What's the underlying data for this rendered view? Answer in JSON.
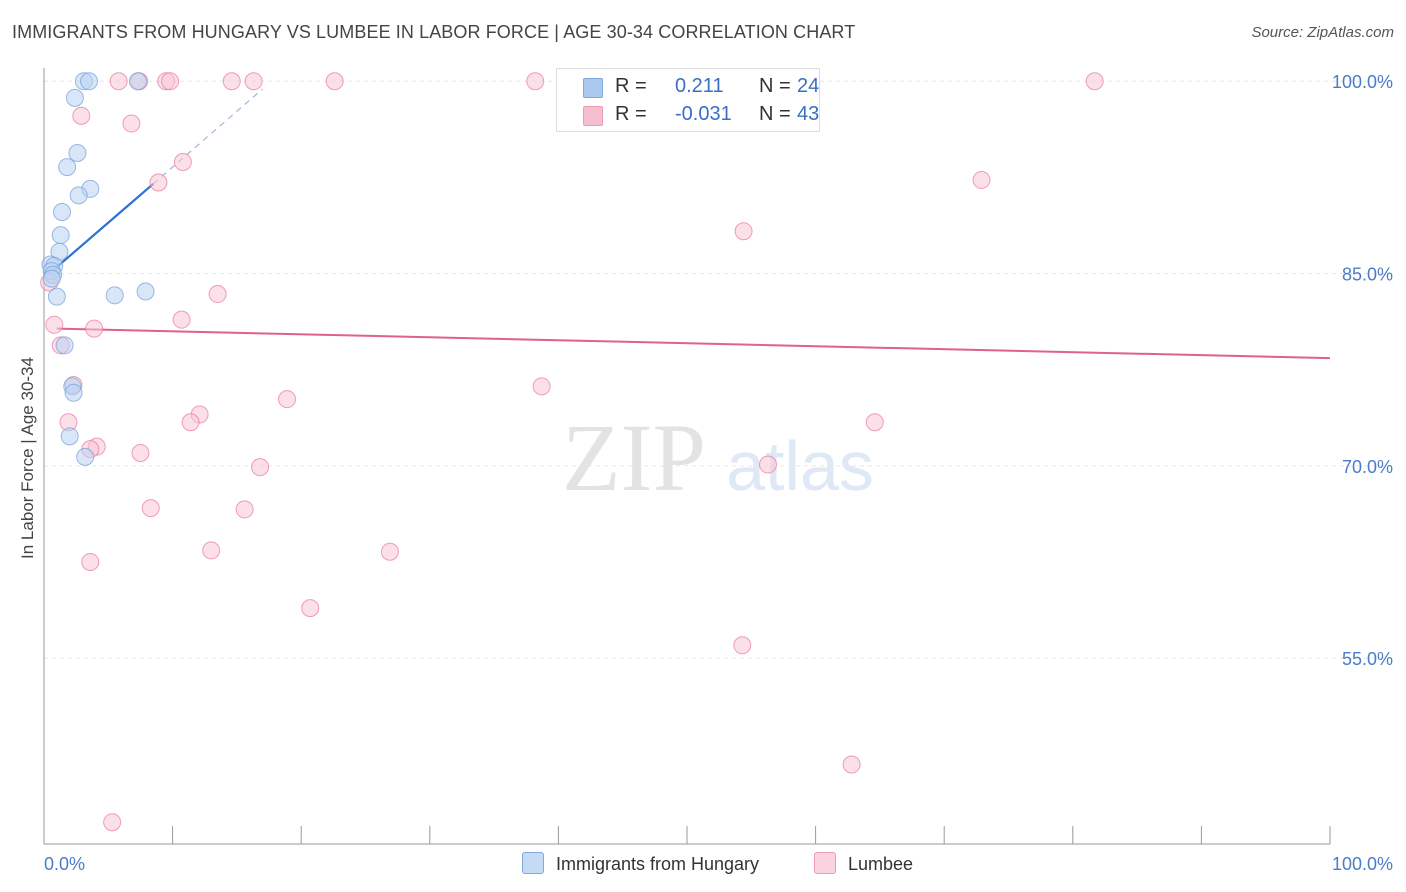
{
  "title": "IMMIGRANTS FROM HUNGARY VS LUMBEE IN LABOR FORCE | AGE 30-34 CORRELATION CHART",
  "source": "Source: ZipAtlas.com",
  "watermark": {
    "zip": "ZIP",
    "atlas": "atlas"
  },
  "stats": [
    {
      "r_label": "R =",
      "r_value": "0.211",
      "n_label": "N =",
      "n_value": "24",
      "color": "#a9c7ef",
      "border": "#7ea8e0"
    },
    {
      "r_label": "R =",
      "r_value": "-0.031",
      "n_label": "N =",
      "n_value": "43",
      "color": "#f6bfd0",
      "border": "#ee9ab4"
    }
  ],
  "legend": [
    {
      "label": "Immigrants from Hungary",
      "color": "#c5daf5",
      "border": "#7ea8e0"
    },
    {
      "label": "Lumbee",
      "color": "#fbd3e0",
      "border": "#ee9ab4"
    }
  ],
  "chart_data": {
    "type": "scatter",
    "title": "IMMIGRANTS FROM HUNGARY VS LUMBEE IN LABOR FORCE | AGE 30-34 CORRELATION CHART",
    "xlabel": "",
    "ylabel": "In Labor Force | Age 30-34",
    "xlim": [
      0,
      100
    ],
    "ylim": [
      40.5,
      101.5
    ],
    "x_tick_labels": [
      "0.0%",
      "100.0%"
    ],
    "y_ticks": [
      55,
      70,
      85,
      100
    ],
    "y_tick_labels": [
      "55.0%",
      "70.0%",
      "85.0%",
      "100.0%"
    ],
    "grid": true,
    "series": [
      {
        "name": "Immigrants from Hungary",
        "color": "#6f9fdc",
        "fill": "#b9d2f3",
        "points": [
          [
            3.1,
            100.0
          ],
          [
            3.5,
            100.0
          ],
          [
            7.3,
            100.0
          ],
          [
            2.4,
            98.7
          ],
          [
            2.6,
            94.4
          ],
          [
            1.8,
            93.3
          ],
          [
            3.6,
            91.6
          ],
          [
            2.7,
            91.1
          ],
          [
            1.4,
            89.8
          ],
          [
            1.3,
            88.0
          ],
          [
            1.2,
            86.7
          ],
          [
            0.5,
            85.7
          ],
          [
            0.8,
            85.6
          ],
          [
            0.6,
            85.2
          ],
          [
            0.7,
            84.9
          ],
          [
            0.6,
            84.6
          ],
          [
            1.0,
            83.2
          ],
          [
            5.5,
            83.3
          ],
          [
            7.9,
            83.6
          ],
          [
            1.6,
            79.4
          ],
          [
            2.2,
            76.2
          ],
          [
            2.3,
            75.7
          ],
          [
            2.0,
            72.3
          ],
          [
            3.2,
            70.7
          ]
        ],
        "trend": {
          "x1": 0.3,
          "y1": 84.9,
          "x2": 8.5,
          "y2": 92.0,
          "dash_x2": 17.0,
          "dash_y2": 99.4
        }
      },
      {
        "name": "Lumbee",
        "color": "#e8779c",
        "fill": "#f8c6d6",
        "points": [
          [
            5.8,
            100.0
          ],
          [
            7.4,
            100.0
          ],
          [
            9.5,
            100.0
          ],
          [
            9.8,
            100.0
          ],
          [
            14.6,
            100.0
          ],
          [
            16.3,
            100.0
          ],
          [
            22.6,
            100.0
          ],
          [
            38.2,
            100.0
          ],
          [
            48.3,
            100.0
          ],
          [
            81.7,
            100.0
          ],
          [
            2.9,
            97.3
          ],
          [
            6.8,
            96.7
          ],
          [
            10.8,
            93.7
          ],
          [
            8.9,
            92.1
          ],
          [
            54.4,
            88.3
          ],
          [
            72.9,
            92.3
          ],
          [
            13.5,
            83.4
          ],
          [
            10.7,
            81.4
          ],
          [
            0.8,
            81.0
          ],
          [
            3.9,
            80.7
          ],
          [
            1.3,
            79.4
          ],
          [
            2.3,
            76.3
          ],
          [
            38.7,
            76.2
          ],
          [
            18.9,
            75.2
          ],
          [
            12.1,
            74.0
          ],
          [
            11.4,
            73.4
          ],
          [
            1.9,
            73.4
          ],
          [
            64.6,
            73.4
          ],
          [
            4.1,
            71.5
          ],
          [
            3.6,
            71.3
          ],
          [
            7.5,
            71.0
          ],
          [
            16.8,
            69.9
          ],
          [
            56.3,
            70.1
          ],
          [
            8.3,
            66.7
          ],
          [
            15.6,
            66.6
          ],
          [
            13.0,
            63.4
          ],
          [
            26.9,
            63.3
          ],
          [
            3.6,
            62.5
          ],
          [
            20.7,
            58.9
          ],
          [
            54.3,
            56.0
          ],
          [
            62.8,
            46.7
          ],
          [
            5.3,
            42.2
          ],
          [
            0.4,
            84.3
          ]
        ],
        "trend": {
          "x1": 1.0,
          "y1": 80.7,
          "x2": 100.0,
          "y2": 78.4
        }
      }
    ]
  }
}
